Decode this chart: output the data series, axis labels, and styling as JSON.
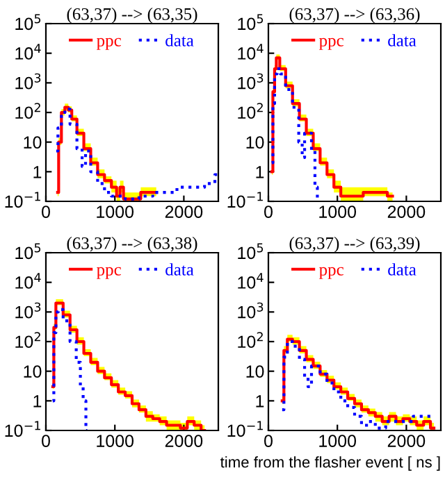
{
  "chart_data": [
    {
      "type": "step",
      "title": "(63,37) --> (63,35)",
      "xlim": [
        0,
        2500
      ],
      "xticks": [
        0,
        1000,
        2000
      ],
      "ylim": [
        0.1,
        100000
      ],
      "log": "y",
      "yticks": [
        {
          "value": 0.1,
          "label": "10$^{−1}$"
        },
        1,
        10,
        {
          "value": 100,
          "label": "10$^{2}$"
        },
        {
          "value": 1000,
          "label": "10$^{3}$"
        },
        {
          "value": 10000,
          "label": "10$^{4}$"
        },
        {
          "value": 100000,
          "label": "10$^{5}$"
        }
      ],
      "legend": "top",
      "grid": false,
      "series": [
        {
          "name": "ppc",
          "color": "#ff0000",
          "line_style": "solid",
          "x": [
            170,
            200,
            250,
            300,
            350,
            400,
            500,
            600,
            700,
            800,
            900,
            1000,
            1050,
            1100,
            1150,
            1600
          ],
          "values": [
            0.2,
            10,
            100,
            150,
            120,
            60,
            20,
            6,
            2,
            0.8,
            0.5,
            0.3,
            0.15,
            0.3,
            0.12,
            0.2
          ],
          "lower": [
            0.15,
            8,
            80,
            120,
            100,
            50,
            16,
            5,
            1.6,
            0.6,
            0.4,
            0.2,
            0.1,
            0.2,
            0.1,
            0.15
          ],
          "upper": [
            0.3,
            14,
            130,
            200,
            160,
            80,
            28,
            9,
            3,
            1.2,
            0.7,
            0.5,
            0.3,
            0.5,
            0.2,
            0.3
          ]
        },
        {
          "name": "data",
          "color": "#0000ff",
          "line_style": "dotted",
          "x": [
            150,
            200,
            250,
            300,
            400,
            500,
            550,
            600,
            700,
            800,
            900,
            1000,
            1100,
            1200,
            1500,
            1600,
            1800,
            2000,
            2200,
            2400,
            2500
          ],
          "values": [
            5,
            30,
            100,
            130,
            40,
            6,
            1.5,
            5,
            1,
            0.4,
            0.2,
            0.15,
            0.15,
            0.12,
            0.15,
            0.2,
            0.2,
            0.3,
            0.3,
            0.4,
            0.8
          ]
        }
      ]
    },
    {
      "type": "step",
      "title": "(63,37) --> (63,36)",
      "xlim": [
        0,
        2500
      ],
      "xticks": [
        0,
        1000,
        2000
      ],
      "ylim": [
        0.1,
        100000
      ],
      "log": "y",
      "yticks": [
        {
          "value": 0.1,
          "label": "10$^{−1}$"
        },
        1,
        10,
        {
          "value": 100,
          "label": "10$^{2}$"
        },
        {
          "value": 1000,
          "label": "10$^{3}$"
        },
        {
          "value": 10000,
          "label": "10$^{4}$"
        },
        {
          "value": 100000,
          "label": "10$^{5}$"
        }
      ],
      "legend": "top",
      "grid": false,
      "series": [
        {
          "name": "ppc",
          "color": "#ff0000",
          "line_style": "solid",
          "x": [
            50,
            80,
            100,
            130,
            200,
            300,
            400,
            500,
            600,
            700,
            800,
            900,
            1000,
            1100,
            1650,
            1800
          ],
          "values": [
            1,
            500,
            3000,
            7000,
            3000,
            800,
            200,
            60,
            20,
            6,
            2,
            0.8,
            0.3,
            0.15,
            0.2,
            0.15
          ],
          "lower": [
            0.8,
            400,
            2500,
            6000,
            2500,
            650,
            160,
            50,
            16,
            5,
            1.6,
            0.6,
            0.2,
            0.1,
            0.15,
            0.1
          ],
          "upper": [
            1.3,
            650,
            4000,
            9000,
            4000,
            1100,
            280,
            85,
            28,
            9,
            3,
            1.2,
            0.5,
            0.3,
            0.3,
            0.2
          ]
        },
        {
          "name": "data",
          "color": "#0000ff",
          "line_style": "dotted",
          "x": [
            50,
            80,
            100,
            150,
            200,
            300,
            400,
            480,
            500,
            550,
            600,
            650,
            700,
            720
          ],
          "values": [
            2,
            200,
            2000,
            3000,
            2000,
            600,
            150,
            10,
            3,
            20,
            20,
            5,
            0.3,
            0.1
          ]
        }
      ]
    },
    {
      "type": "step",
      "title": "(63,37) --> (63,38)",
      "xlim": [
        0,
        2500
      ],
      "xticks": [
        0,
        1000,
        2000
      ],
      "ylim": [
        0.1,
        100000
      ],
      "log": "y",
      "yticks": [
        {
          "value": 0.1,
          "label": "10$^{−1}$"
        },
        1,
        10,
        {
          "value": 100,
          "label": "10$^{2}$"
        },
        {
          "value": 1000,
          "label": "10$^{3}$"
        },
        {
          "value": 10000,
          "label": "10$^{4}$"
        },
        {
          "value": 100000,
          "label": "10$^{5}$"
        }
      ],
      "legend": "top",
      "grid": false,
      "series": [
        {
          "name": "ppc",
          "color": "#ff0000",
          "line_style": "solid",
          "x": [
            100,
            130,
            160,
            200,
            300,
            400,
            500,
            600,
            700,
            800,
            900,
            1000,
            1100,
            1200,
            1300,
            1400,
            1500,
            1600,
            1700,
            1800,
            1900,
            2000,
            2100,
            2200,
            2300
          ],
          "values": [
            3,
            300,
            2000,
            2000,
            800,
            250,
            100,
            40,
            20,
            10,
            6,
            3.5,
            2,
            1.5,
            0.8,
            0.5,
            0.3,
            0.25,
            0.2,
            0.15,
            0.15,
            0.12,
            0.2,
            0.15,
            0.1
          ],
          "lower": [
            2.5,
            250,
            1700,
            1700,
            650,
            200,
            80,
            32,
            16,
            8,
            5,
            2.8,
            1.6,
            1.2,
            0.6,
            0.4,
            0.2,
            0.2,
            0.15,
            0.1,
            0.1,
            0.1,
            0.15,
            0.1,
            0.1
          ],
          "upper": [
            4,
            400,
            2700,
            2700,
            1100,
            340,
            140,
            55,
            28,
            14,
            8.5,
            5,
            2.8,
            2.1,
            1.1,
            0.7,
            0.45,
            0.35,
            0.3,
            0.22,
            0.22,
            0.18,
            0.3,
            0.22,
            0.15
          ]
        },
        {
          "name": "data",
          "color": "#0000ff",
          "line_style": "dotted",
          "x": [
            100,
            130,
            160,
            200,
            300,
            400,
            480,
            520,
            560,
            600
          ],
          "values": [
            1,
            200,
            1000,
            1200,
            500,
            100,
            20,
            3,
            1,
            0.1
          ]
        }
      ]
    },
    {
      "type": "step",
      "title": "(63,37) --> (63,39)",
      "xlim": [
        0,
        2500
      ],
      "xticks": [
        0,
        1000,
        2000
      ],
      "ylim": [
        0.1,
        100000
      ],
      "log": "y",
      "yticks": [
        {
          "value": 0.1,
          "label": "10$^{−1}$"
        },
        1,
        10,
        {
          "value": 100,
          "label": "10$^{2}$"
        },
        {
          "value": 1000,
          "label": "10$^{3}$"
        },
        {
          "value": 10000,
          "label": "10$^{4}$"
        },
        {
          "value": 100000,
          "label": "10$^{5}$"
        }
      ],
      "legend": "top",
      "grid": false,
      "xlabel": "time from the flasher event [ ns ]",
      "series": [
        {
          "name": "ppc",
          "color": "#ff0000",
          "line_style": "solid",
          "x": [
            200,
            250,
            300,
            400,
            500,
            600,
            700,
            800,
            900,
            1000,
            1100,
            1200,
            1300,
            1400,
            1500,
            1600,
            1700,
            1800,
            1900,
            2000,
            2100,
            2200,
            2300,
            2400
          ],
          "values": [
            1,
            50,
            120,
            100,
            50,
            25,
            15,
            8,
            5,
            3,
            2,
            1.2,
            0.8,
            0.5,
            0.4,
            0.3,
            0.2,
            0.3,
            0.2,
            0.25,
            0.2,
            0.15,
            0.2,
            0.12
          ],
          "lower": [
            0.8,
            40,
            100,
            80,
            40,
            20,
            12,
            6.5,
            4,
            2.4,
            1.6,
            1,
            0.6,
            0.4,
            0.3,
            0.2,
            0.15,
            0.2,
            0.15,
            0.2,
            0.15,
            0.1,
            0.15,
            0.1
          ],
          "upper": [
            1.4,
            70,
            170,
            140,
            70,
            35,
            21,
            11,
            7,
            4.2,
            2.8,
            1.7,
            1.1,
            0.7,
            0.55,
            0.42,
            0.3,
            0.42,
            0.3,
            0.35,
            0.3,
            0.22,
            0.3,
            0.18
          ]
        },
        {
          "name": "data",
          "color": "#0000ff",
          "line_style": "dotted",
          "x": [
            200,
            250,
            300,
            400,
            500,
            550,
            600,
            650,
            700,
            800,
            900,
            1000,
            1100,
            1200,
            1300,
            1400,
            1500,
            1600,
            1800,
            2000,
            2200,
            2400
          ],
          "values": [
            0.5,
            30,
            100,
            70,
            25,
            6,
            3,
            15,
            15,
            8,
            4,
            2,
            1,
            0.6,
            0.3,
            0.15,
            0.2,
            0.12,
            0.2,
            0.2,
            0.3,
            0.3
          ]
        }
      ]
    }
  ]
}
